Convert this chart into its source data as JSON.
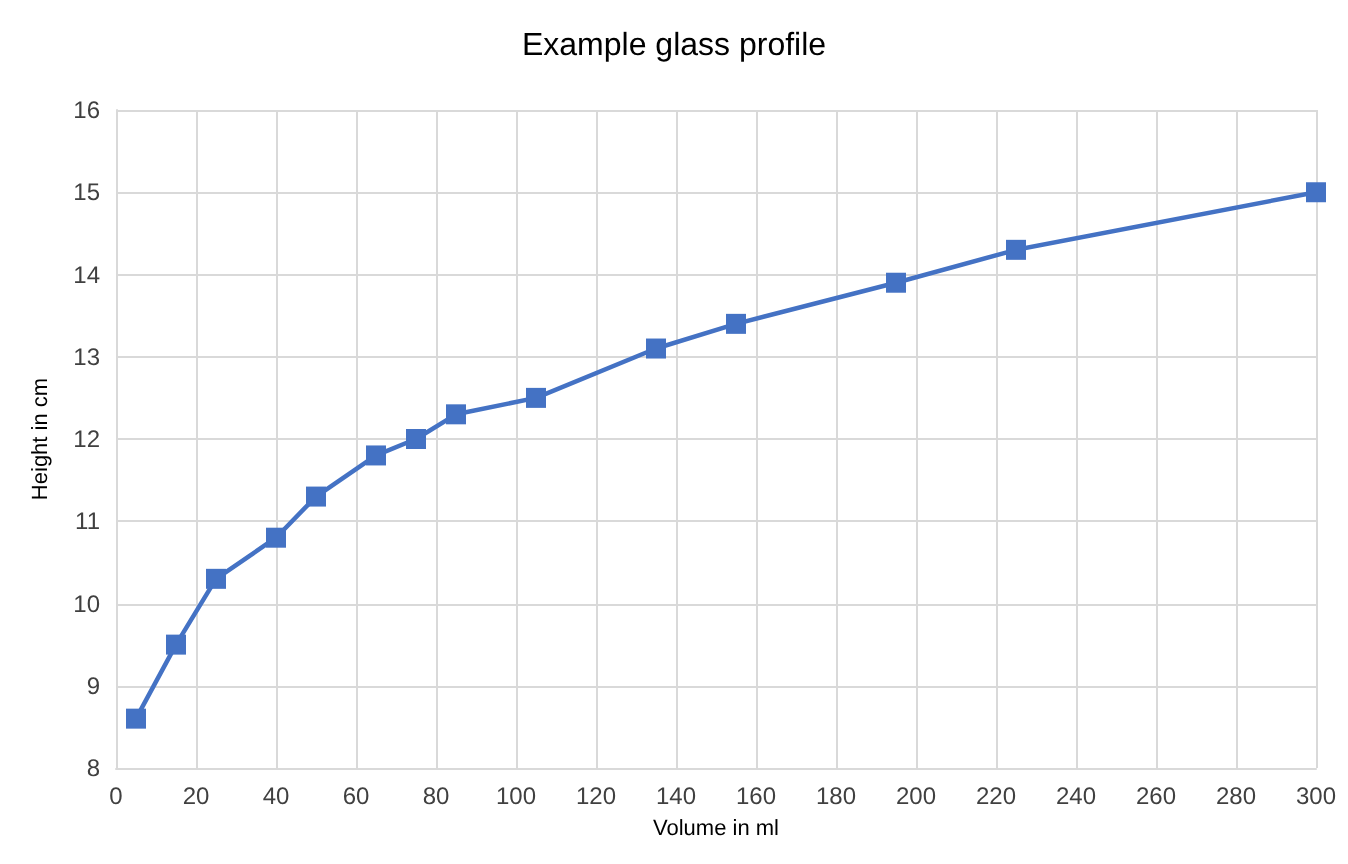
{
  "chart_data": {
    "type": "line",
    "title": "Example glass profile",
    "xlabel": "Volume in ml",
    "ylabel": "Height in cm",
    "x": [
      5,
      15,
      25,
      40,
      50,
      65,
      75,
      85,
      105,
      135,
      155,
      195,
      225,
      300
    ],
    "series": [
      {
        "color": "#4472c4",
        "values": [
          8.6,
          9.5,
          10.3,
          10.8,
          11.3,
          11.8,
          12.0,
          12.3,
          12.5,
          13.1,
          13.4,
          13.9,
          14.3,
          15.0
        ]
      }
    ],
    "xlim": [
      0,
      300
    ],
    "xticks": [
      0,
      20,
      40,
      60,
      80,
      100,
      120,
      140,
      160,
      180,
      200,
      220,
      240,
      260,
      280,
      300
    ],
    "ylim": [
      8,
      16
    ],
    "yticks": [
      8,
      9,
      10,
      11,
      12,
      13,
      14,
      15,
      16
    ],
    "grid": true,
    "marker": "square",
    "line_style": "solid"
  }
}
